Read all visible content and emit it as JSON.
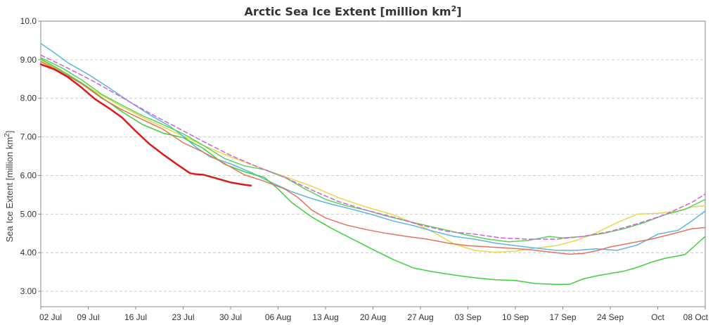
{
  "chart_data": {
    "type": "line",
    "title": "Arctic Sea Ice Extent [million km",
    "title_sup": "2",
    "title_end": "]",
    "ylabel": "Sea Ice Extent [million km",
    "ylabel_sup": "2",
    "ylabel_end": "]",
    "xlabel": "",
    "ylim": [
      2.6,
      10.0
    ],
    "xlim": [
      0,
      98
    ],
    "grid": true,
    "x_ticks": [
      {
        "x": 0,
        "label": "02 Jul"
      },
      {
        "x": 7,
        "label": "09 Jul"
      },
      {
        "x": 14,
        "label": "16 Jul"
      },
      {
        "x": 21,
        "label": "23 Jul"
      },
      {
        "x": 28,
        "label": "30 Jul"
      },
      {
        "x": 35,
        "label": "06 Aug"
      },
      {
        "x": 42,
        "label": "13 Aug"
      },
      {
        "x": 49,
        "label": "20 Aug"
      },
      {
        "x": 56,
        "label": "27 Aug"
      },
      {
        "x": 63,
        "label": "03 Sep"
      },
      {
        "x": 70,
        "label": "10 Sep"
      },
      {
        "x": 77,
        "label": "17 Sep"
      },
      {
        "x": 84,
        "label": "24 Sep"
      },
      {
        "x": 91,
        "label": "Oct"
      },
      {
        "x": 98,
        "label": "08 Oct"
      }
    ],
    "y_ticks": [
      "3.00",
      "4.00",
      "5.00",
      "6.00",
      "7.00",
      "8.00",
      "9.00",
      "10.0"
    ],
    "series": [
      {
        "color": "#e6d84a",
        "width": 1.5,
        "dashed": false,
        "points": [
          [
            0,
            8.98
          ],
          [
            4,
            8.62
          ],
          [
            8,
            8.18
          ],
          [
            12,
            7.78
          ],
          [
            16,
            7.42
          ],
          [
            20,
            7.1
          ],
          [
            24,
            6.78
          ],
          [
            28,
            6.48
          ],
          [
            32,
            6.22
          ],
          [
            36,
            5.97
          ],
          [
            40,
            5.72
          ],
          [
            44,
            5.42
          ],
          [
            48,
            5.18
          ],
          [
            52,
            4.98
          ],
          [
            56,
            4.7
          ],
          [
            58,
            4.52
          ],
          [
            61,
            4.22
          ],
          [
            64,
            4.06
          ],
          [
            67,
            4.01
          ],
          [
            70,
            4.04
          ],
          [
            73,
            4.12
          ],
          [
            76,
            4.18
          ],
          [
            79,
            4.32
          ],
          [
            82,
            4.52
          ],
          [
            85,
            4.78
          ],
          [
            88,
            5.0
          ],
          [
            91,
            5.02
          ],
          [
            94,
            5.08
          ],
          [
            96,
            5.18
          ],
          [
            98,
            5.22
          ]
        ]
      },
      {
        "color": "#5ab6e0",
        "width": 1.5,
        "dashed": false,
        "points": [
          [
            0,
            9.42
          ],
          [
            2,
            9.18
          ],
          [
            4,
            8.92
          ],
          [
            7,
            8.62
          ],
          [
            10,
            8.28
          ],
          [
            13,
            7.92
          ],
          [
            16,
            7.58
          ],
          [
            19,
            7.28
          ],
          [
            21,
            7.02
          ],
          [
            23,
            6.72
          ],
          [
            25,
            6.48
          ],
          [
            28,
            6.3
          ],
          [
            31,
            6.08
          ],
          [
            34,
            5.82
          ],
          [
            37,
            5.58
          ],
          [
            40,
            5.4
          ],
          [
            43,
            5.25
          ],
          [
            46,
            5.12
          ],
          [
            49,
            4.98
          ],
          [
            52,
            4.82
          ],
          [
            55,
            4.7
          ],
          [
            58,
            4.55
          ],
          [
            61,
            4.42
          ],
          [
            64,
            4.35
          ],
          [
            67,
            4.25
          ],
          [
            70,
            4.18
          ],
          [
            73,
            4.12
          ],
          [
            76,
            4.06
          ],
          [
            79,
            4.06
          ],
          [
            82,
            4.1
          ],
          [
            85,
            4.06
          ],
          [
            88,
            4.2
          ],
          [
            91,
            4.48
          ],
          [
            94,
            4.58
          ],
          [
            96,
            4.82
          ],
          [
            98,
            5.08
          ]
        ]
      },
      {
        "color": "#3dd13d",
        "width": 1.5,
        "dashed": false,
        "points": [
          [
            0,
            9.02
          ],
          [
            3,
            8.72
          ],
          [
            6,
            8.4
          ],
          [
            9,
            8.02
          ],
          [
            12,
            7.65
          ],
          [
            15,
            7.32
          ],
          [
            18,
            7.1
          ],
          [
            21,
            6.98
          ],
          [
            24,
            6.7
          ],
          [
            27,
            6.3
          ],
          [
            30,
            6.1
          ],
          [
            33,
            5.95
          ],
          [
            35,
            5.65
          ],
          [
            37,
            5.3
          ],
          [
            40,
            4.92
          ],
          [
            43,
            4.62
          ],
          [
            46,
            4.35
          ],
          [
            49,
            4.08
          ],
          [
            52,
            3.82
          ],
          [
            55,
            3.6
          ],
          [
            58,
            3.5
          ],
          [
            61,
            3.42
          ],
          [
            64,
            3.35
          ],
          [
            67,
            3.3
          ],
          [
            70,
            3.28
          ],
          [
            73,
            3.2
          ],
          [
            76,
            3.18
          ],
          [
            78,
            3.18
          ],
          [
            80,
            3.32
          ],
          [
            82,
            3.4
          ],
          [
            84,
            3.46
          ],
          [
            86,
            3.52
          ],
          [
            88,
            3.62
          ],
          [
            90,
            3.75
          ],
          [
            92,
            3.85
          ],
          [
            95,
            3.95
          ],
          [
            98,
            4.42
          ]
        ]
      },
      {
        "color": "#e3735a",
        "width": 1.5,
        "dashed": false,
        "points": [
          [
            0,
            8.95
          ],
          [
            3,
            8.68
          ],
          [
            6,
            8.38
          ],
          [
            9,
            8.0
          ],
          [
            12,
            7.7
          ],
          [
            15,
            7.45
          ],
          [
            18,
            7.2
          ],
          [
            21,
            6.85
          ],
          [
            24,
            6.6
          ],
          [
            27,
            6.32
          ],
          [
            30,
            6.02
          ],
          [
            33,
            5.85
          ],
          [
            36,
            5.65
          ],
          [
            38,
            5.42
          ],
          [
            40,
            5.1
          ],
          [
            42,
            4.9
          ],
          [
            45,
            4.72
          ],
          [
            48,
            4.6
          ],
          [
            51,
            4.5
          ],
          [
            54,
            4.42
          ],
          [
            57,
            4.35
          ],
          [
            60,
            4.25
          ],
          [
            63,
            4.18
          ],
          [
            66,
            4.15
          ],
          [
            69,
            4.12
          ],
          [
            72,
            4.08
          ],
          [
            75,
            4.02
          ],
          [
            78,
            3.96
          ],
          [
            80,
            3.98
          ],
          [
            82,
            4.05
          ],
          [
            84,
            4.15
          ],
          [
            87,
            4.25
          ],
          [
            90,
            4.35
          ],
          [
            93,
            4.48
          ],
          [
            96,
            4.62
          ],
          [
            98,
            4.65
          ]
        ]
      },
      {
        "color": "#56d456",
        "width": 1.5,
        "dashed": false,
        "points": [
          [
            0,
            9.05
          ],
          [
            3,
            8.8
          ],
          [
            6,
            8.48
          ],
          [
            9,
            8.1
          ],
          [
            12,
            7.82
          ],
          [
            15,
            7.55
          ],
          [
            18,
            7.32
          ],
          [
            21,
            7.08
          ],
          [
            24,
            6.78
          ],
          [
            27,
            6.45
          ],
          [
            30,
            6.25
          ],
          [
            33,
            6.15
          ],
          [
            36,
            5.95
          ],
          [
            39,
            5.65
          ],
          [
            42,
            5.38
          ],
          [
            45,
            5.22
          ],
          [
            48,
            5.1
          ],
          [
            51,
            4.95
          ],
          [
            54,
            4.82
          ],
          [
            57,
            4.7
          ],
          [
            60,
            4.58
          ],
          [
            63,
            4.45
          ],
          [
            66,
            4.35
          ],
          [
            69,
            4.28
          ],
          [
            72,
            4.32
          ],
          [
            75,
            4.42
          ],
          [
            77,
            4.38
          ],
          [
            80,
            4.42
          ],
          [
            83,
            4.5
          ],
          [
            86,
            4.62
          ],
          [
            89,
            4.78
          ],
          [
            92,
            4.98
          ],
          [
            95,
            5.12
          ],
          [
            98,
            5.38
          ]
        ]
      },
      {
        "color": "#d45ee0",
        "width": 1.5,
        "dashed": true,
        "points": [
          [
            0,
            9.12
          ],
          [
            4,
            8.78
          ],
          [
            8,
            8.42
          ],
          [
            12,
            8.02
          ],
          [
            16,
            7.62
          ],
          [
            20,
            7.25
          ],
          [
            24,
            6.88
          ],
          [
            28,
            6.52
          ],
          [
            32,
            6.22
          ],
          [
            36,
            5.95
          ],
          [
            40,
            5.62
          ],
          [
            44,
            5.32
          ],
          [
            48,
            5.1
          ],
          [
            52,
            4.92
          ],
          [
            56,
            4.72
          ],
          [
            60,
            4.55
          ],
          [
            64,
            4.48
          ],
          [
            68,
            4.38
          ],
          [
            72,
            4.35
          ],
          [
            76,
            4.35
          ],
          [
            80,
            4.42
          ],
          [
            84,
            4.55
          ],
          [
            88,
            4.75
          ],
          [
            92,
            4.98
          ],
          [
            96,
            5.3
          ],
          [
            98,
            5.52
          ]
        ]
      },
      {
        "color": "#dd1a1a",
        "width": 2.5,
        "dashed": false,
        "points": [
          [
            0,
            8.88
          ],
          [
            2,
            8.75
          ],
          [
            4,
            8.55
          ],
          [
            6,
            8.28
          ],
          [
            8,
            7.98
          ],
          [
            10,
            7.75
          ],
          [
            12,
            7.5
          ],
          [
            14,
            7.15
          ],
          [
            16,
            6.82
          ],
          [
            18,
            6.55
          ],
          [
            20,
            6.3
          ],
          [
            22,
            6.06
          ],
          [
            23,
            6.03
          ],
          [
            24,
            6.02
          ],
          [
            26,
            5.92
          ],
          [
            28,
            5.82
          ],
          [
            30,
            5.76
          ],
          [
            31,
            5.74
          ]
        ]
      }
    ]
  }
}
